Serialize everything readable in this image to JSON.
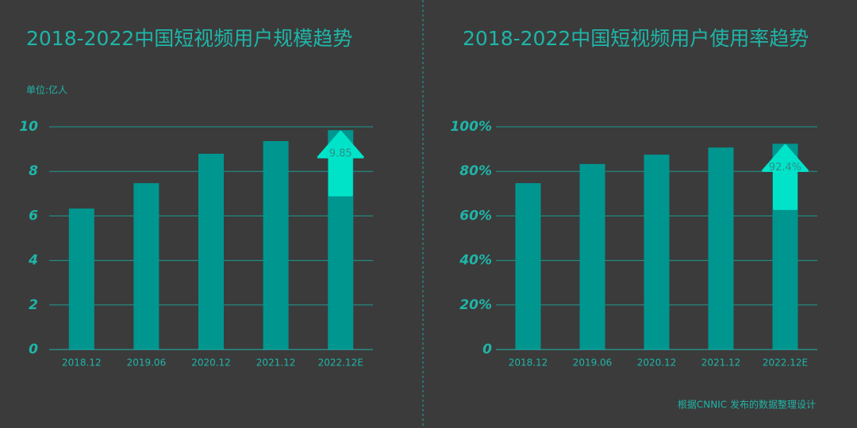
{
  "chart_data": [
    {
      "type": "bar",
      "title": "2018-2022中国短视频用户规模趋势",
      "unit_label": "单位:亿人",
      "categories": [
        "2018.12",
        "2019.06",
        "2020.12",
        "2021.12",
        "2022.12E"
      ],
      "values": [
        6.33,
        7.47,
        8.79,
        9.36,
        9.85
      ],
      "value_labels": [
        null,
        null,
        null,
        null,
        "9.85"
      ],
      "color": "#009690",
      "ylim": [
        0,
        10
      ],
      "yticks": [
        0,
        2,
        4,
        6,
        8,
        10
      ],
      "grid": true
    },
    {
      "type": "bar",
      "title": "2018-2022中国短视频用户使用率趋势",
      "categories": [
        "2018.12",
        "2019.06",
        "2020.12",
        "2021.12",
        "2022.12E"
      ],
      "values": [
        74.7,
        83.3,
        87.5,
        90.7,
        92.4
      ],
      "value_labels": [
        null,
        null,
        null,
        null,
        "92.4%"
      ],
      "color": "#009690",
      "ylim": [
        0,
        100
      ],
      "yticks": [
        {
          "value": 0,
          "label": "0"
        },
        {
          "value": 20,
          "label": "20%"
        },
        {
          "value": 40,
          "label": "40%"
        },
        {
          "value": 60,
          "label": "60%"
        },
        {
          "value": 80,
          "label": "80%"
        },
        {
          "value": 100,
          "label": "100%"
        }
      ],
      "grid": true
    }
  ],
  "source": "根据CNNIC 发布的数据整理设计"
}
